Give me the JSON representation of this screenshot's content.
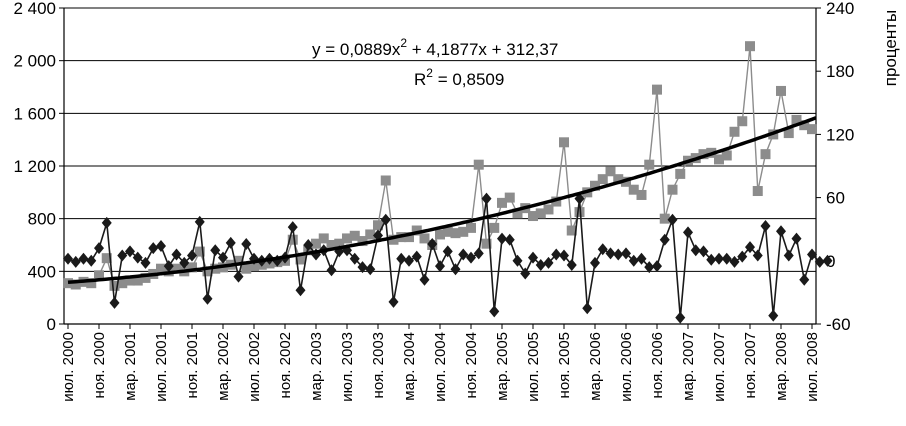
{
  "chart_data": {
    "type": "line",
    "y_left": {
      "ylim": [
        0,
        2400
      ],
      "ticks": [
        0,
        400,
        800,
        1200,
        1600,
        2000,
        2400
      ],
      "tick_labels": [
        "0",
        "400",
        "800",
        "1 200",
        "1 600",
        "2 000",
        "2 400"
      ]
    },
    "y_right": {
      "ylim": [
        -60,
        240
      ],
      "ticks": [
        -60,
        0,
        60,
        120,
        180,
        240
      ],
      "tick_labels": [
        "-60",
        "0",
        "60",
        "120",
        "180",
        "240"
      ],
      "label": "проценты"
    },
    "x_tick_labels": [
      "июл. 2000",
      "ноя. 2000",
      "мар. 2001",
      "июл. 2001",
      "ноя. 2001",
      "мар. 2002",
      "июл. 2002",
      "ноя. 2002",
      "мар. 2003",
      "июл. 2003",
      "ноя. 2003",
      "мар. 2004",
      "июл. 2004",
      "ноя. 2004",
      "мар. 2005",
      "июл. 2005",
      "ноя. 2005",
      "мар. 2006",
      "июл. 2006",
      "ноя. 2006",
      "мар. 2007",
      "июл. 2007",
      "ноя. 2007",
      "мар. 2008",
      "июл. 2008"
    ],
    "grid": "horizontal",
    "annotations": {
      "equation_y": "y",
      "equation_rest": " = 0,0889x",
      "equation_exp": "2",
      "equation_tail": " + 4,1877x  + 312,37",
      "r2_label": "R",
      "r2_exp": "2",
      "r2_value": " = 0,8509"
    },
    "trendline": {
      "type": "polynomial",
      "coefficients": [
        0.0889,
        4.1877,
        312.37
      ]
    },
    "series": [
      {
        "marker": "square",
        "color": "#8c8c8c",
        "axis": "left",
        "values": [
          310,
          300,
          320,
          310,
          370,
          500,
          290,
          310,
          330,
          330,
          350,
          380,
          420,
          400,
          420,
          400,
          430,
          550,
          400,
          420,
          430,
          450,
          480,
          420,
          440,
          450,
          460,
          470,
          480,
          640,
          490,
          560,
          610,
          650,
          600,
          610,
          650,
          670,
          630,
          680,
          750,
          1090,
          640,
          660,
          660,
          710,
          650,
          600,
          680,
          700,
          690,
          700,
          730,
          1210,
          610,
          730,
          920,
          960,
          840,
          880,
          820,
          840,
          870,
          930,
          1380,
          710,
          850,
          1000,
          1050,
          1100,
          1160,
          1100,
          1080,
          1020,
          980,
          1210,
          1780,
          800,
          1020,
          1140,
          1240,
          1260,
          1290,
          1300,
          1250,
          1280,
          1460,
          1540,
          2110,
          1010,
          1290,
          1440,
          1770,
          1450,
          1550,
          1510,
          1480
        ]
      },
      {
        "marker": "diamond",
        "color": "#1a1a1a",
        "axis": "right",
        "values": [
          2,
          -1,
          2,
          0,
          12,
          36,
          -40,
          5,
          9,
          3,
          -2,
          12,
          14,
          -5,
          6,
          -2,
          5,
          37,
          -36,
          10,
          3,
          17,
          -15,
          16,
          2,
          0,
          2,
          0,
          3,
          32,
          -28,
          15,
          6,
          10,
          -9,
          9,
          10,
          2,
          -6,
          -8,
          24,
          39,
          -39,
          2,
          0,
          4,
          -18,
          16,
          -5,
          9,
          -8,
          6,
          3,
          7,
          59,
          -48,
          21,
          20,
          0,
          -12,
          3,
          -4,
          -2,
          6,
          5,
          -4,
          59,
          -45,
          -2,
          11,
          7,
          6,
          7,
          0,
          2,
          -6,
          -5,
          20,
          39,
          -54,
          27,
          10,
          9,
          1,
          2,
          2,
          -1,
          4,
          13,
          5,
          33,
          -52,
          28,
          5,
          21,
          -18,
          6,
          -1,
          0
        ]
      }
    ]
  }
}
